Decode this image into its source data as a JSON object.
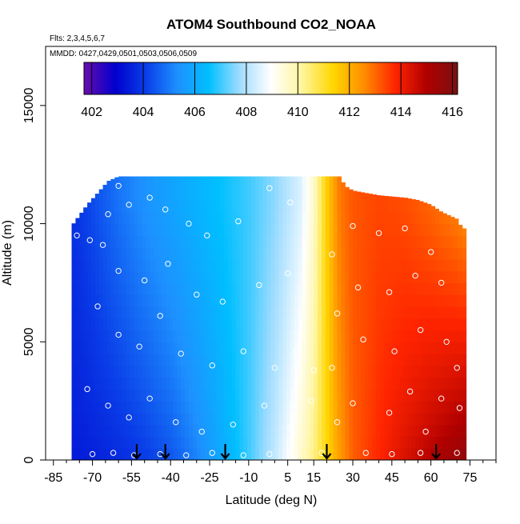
{
  "chart_data": {
    "type": "heatmap",
    "title": "ATOM4 Southbound CO2_NOAA",
    "subtitle_flights": "Flts: 2,3,4,5,6,7",
    "subtitle_dates": "MMDD: 0427,0429,0501,0503,0506,0509",
    "xlabel": "Latitude (deg N)",
    "ylabel": "Altitude (m)",
    "xlim": [
      -88,
      85
    ],
    "ylim": [
      0,
      17500
    ],
    "x_ticks": [
      -85,
      -70,
      -55,
      -40,
      -25,
      -10,
      5,
      15,
      30,
      45,
      60,
      75
    ],
    "x_tick_labels": [
      "-85",
      "-70",
      "-55",
      "-40",
      "-25",
      "-10",
      "5",
      "15",
      "30",
      "45",
      "60",
      "75"
    ],
    "x_minor_ticks": [
      -80,
      -75,
      -65,
      -60,
      -50,
      -45,
      -35,
      -30,
      -20,
      -15,
      -5,
      0,
      10,
      20,
      25,
      35,
      40,
      50,
      55,
      65,
      70,
      80,
      85
    ],
    "y_ticks": [
      0,
      5000,
      10000,
      15000
    ],
    "y_tick_labels": [
      "0",
      "5000",
      "10000",
      "15000"
    ],
    "colorbar": {
      "range": [
        401.7,
        416.2
      ],
      "ticks": [
        402,
        404,
        406,
        408,
        410,
        412,
        414,
        416
      ],
      "tick_labels": [
        "402",
        "404",
        "406",
        "408",
        "410",
        "412",
        "414",
        "416"
      ],
      "colors": [
        "#6a0dad",
        "#0000cd",
        "#0a3fe8",
        "#1e90ff",
        "#00bfff",
        "#9fdcff",
        "#ffffff",
        "#fff59d",
        "#ffd700",
        "#ff8c00",
        "#ff2400",
        "#b00000",
        "#7a1010"
      ]
    },
    "latitude_profile": {
      "lat": [
        -78,
        -70,
        -60,
        -50,
        -40,
        -30,
        -20,
        -10,
        0,
        10,
        15,
        20,
        25,
        30,
        40,
        50,
        60,
        70,
        73
      ],
      "co2_surface": [
        403.4,
        403.5,
        403.7,
        404.0,
        404.4,
        405.1,
        406.0,
        407.0,
        408.2,
        409.6,
        410.4,
        411.3,
        412.3,
        413.1,
        413.8,
        414.4,
        415.0,
        415.6,
        415.8
      ],
      "co2_upper": [
        403.8,
        404.3,
        404.9,
        405.4,
        405.8,
        406.2,
        406.6,
        407.0,
        407.6,
        408.5,
        409.6,
        411.5,
        412.8,
        413.2,
        413.4,
        413.3,
        413.0,
        412.6,
        412.4
      ]
    },
    "top_boundary": {
      "lat": [
        -78,
        -76,
        -72,
        -68,
        -64,
        -60,
        -56,
        -50,
        -40,
        -30,
        -20,
        -10,
        0,
        10,
        20,
        25,
        27,
        30,
        40,
        50,
        55,
        60,
        64,
        70,
        72
      ],
      "alt": [
        9900,
        10200,
        10800,
        11300,
        11800,
        12000,
        12000,
        12000,
        12000,
        12000,
        12000,
        12000,
        12000,
        12000,
        12000,
        12000,
        11600,
        11400,
        11200,
        11100,
        11000,
        10800,
        10500,
        10200,
        9800
      ]
    },
    "sample_points": [
      {
        "lat": -76,
        "alt": 9500
      },
      {
        "lat": -71,
        "alt": 9300
      },
      {
        "lat": -66,
        "alt": 9100
      },
      {
        "lat": -64,
        "alt": 10400
      },
      {
        "lat": -60,
        "alt": 11600
      },
      {
        "lat": -56,
        "alt": 10800
      },
      {
        "lat": -48,
        "alt": 11100
      },
      {
        "lat": -42,
        "alt": 10600
      },
      {
        "lat": -33,
        "alt": 10000
      },
      {
        "lat": -26,
        "alt": 9500
      },
      {
        "lat": -14,
        "alt": 10100
      },
      {
        "lat": -2,
        "alt": 11500
      },
      {
        "lat": 6,
        "alt": 10900
      },
      {
        "lat": -60,
        "alt": 8000
      },
      {
        "lat": -50,
        "alt": 7600
      },
      {
        "lat": -41,
        "alt": 8300
      },
      {
        "lat": -30,
        "alt": 7000
      },
      {
        "lat": -20,
        "alt": 6700
      },
      {
        "lat": -6,
        "alt": 7400
      },
      {
        "lat": 5,
        "alt": 7900
      },
      {
        "lat": -68,
        "alt": 6500
      },
      {
        "lat": -60,
        "alt": 5300
      },
      {
        "lat": -52,
        "alt": 4800
      },
      {
        "lat": -44,
        "alt": 6100
      },
      {
        "lat": -36,
        "alt": 4500
      },
      {
        "lat": -24,
        "alt": 4000
      },
      {
        "lat": -12,
        "alt": 4600
      },
      {
        "lat": 0,
        "alt": 3900
      },
      {
        "lat": 8,
        "alt": 4600
      },
      {
        "lat": 15,
        "alt": 3800
      },
      {
        "lat": -72,
        "alt": 3000
      },
      {
        "lat": -64,
        "alt": 2300
      },
      {
        "lat": -56,
        "alt": 1800
      },
      {
        "lat": -48,
        "alt": 2600
      },
      {
        "lat": -38,
        "alt": 1600
      },
      {
        "lat": -28,
        "alt": 1200
      },
      {
        "lat": -16,
        "alt": 1500
      },
      {
        "lat": -4,
        "alt": 2300
      },
      {
        "lat": 6,
        "alt": 1400
      },
      {
        "lat": 14,
        "alt": 2500
      },
      {
        "lat": -70,
        "alt": 250
      },
      {
        "lat": -62,
        "alt": 300
      },
      {
        "lat": -54,
        "alt": 200
      },
      {
        "lat": -44,
        "alt": 250
      },
      {
        "lat": -34,
        "alt": 200
      },
      {
        "lat": -24,
        "alt": 300
      },
      {
        "lat": -12,
        "alt": 200
      },
      {
        "lat": -2,
        "alt": 250
      },
      {
        "lat": 8,
        "alt": 200
      },
      {
        "lat": 18,
        "alt": 300
      },
      {
        "lat": 22,
        "alt": 8700
      },
      {
        "lat": 24,
        "alt": 6200
      },
      {
        "lat": 22,
        "alt": 3900
      },
      {
        "lat": 24,
        "alt": 1600
      },
      {
        "lat": 30,
        "alt": 9900
      },
      {
        "lat": 32,
        "alt": 7300
      },
      {
        "lat": 34,
        "alt": 5100
      },
      {
        "lat": 30,
        "alt": 2400
      },
      {
        "lat": 35,
        "alt": 300
      },
      {
        "lat": 40,
        "alt": 9600
      },
      {
        "lat": 44,
        "alt": 7100
      },
      {
        "lat": 46,
        "alt": 4600
      },
      {
        "lat": 44,
        "alt": 2000
      },
      {
        "lat": 45,
        "alt": 250
      },
      {
        "lat": 50,
        "alt": 9800
      },
      {
        "lat": 54,
        "alt": 7800
      },
      {
        "lat": 56,
        "alt": 5500
      },
      {
        "lat": 52,
        "alt": 2900
      },
      {
        "lat": 58,
        "alt": 1200
      },
      {
        "lat": 56,
        "alt": 300
      },
      {
        "lat": 60,
        "alt": 8800
      },
      {
        "lat": 64,
        "alt": 7500
      },
      {
        "lat": 66,
        "alt": 5000
      },
      {
        "lat": 64,
        "alt": 2600
      },
      {
        "lat": 70,
        "alt": 3900
      },
      {
        "lat": 70,
        "alt": 300
      },
      {
        "lat": 71,
        "alt": 2200
      }
    ],
    "arrow_markers_lat": [
      -53,
      -42,
      -19,
      20,
      62
    ]
  }
}
